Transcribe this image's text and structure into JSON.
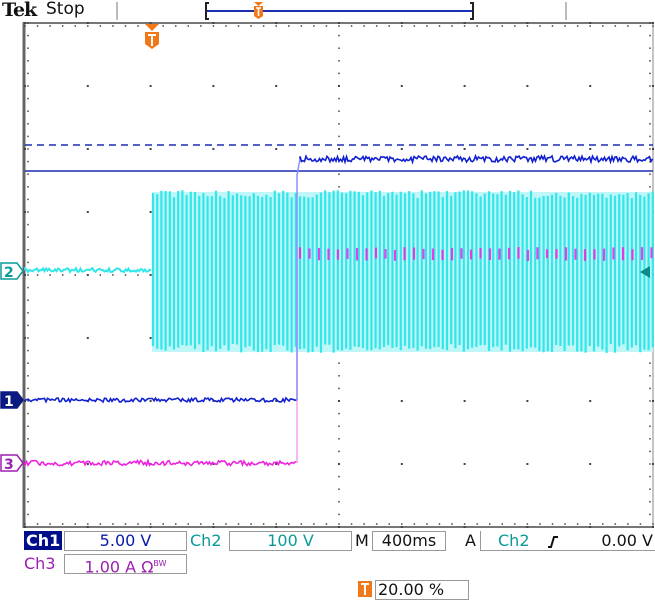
{
  "header": {
    "brand": "Tek",
    "acquisition_state": "Stop"
  },
  "colors": {
    "ch1": "#1020d0",
    "ch2": "#33e6ea",
    "ch3": "#ee22e0",
    "trigger": "#f07818",
    "grid": "#555555"
  },
  "markers": {
    "ch1": "1",
    "ch2": "2",
    "ch3": "3",
    "trigger": "T"
  },
  "readouts": {
    "ch1_label": "Ch1",
    "ch1_scale": "5.00 V",
    "ch2_label": "Ch2",
    "ch2_scale": "100 V",
    "ch3_label": "Ch3",
    "ch3_scale": "1.00 A Ω",
    "ch3_bw": "BW",
    "timebase_label": "M",
    "timebase": "400ms",
    "trigger_mode": "A",
    "trigger_source": "Ch2",
    "trigger_slope": "rising-edge",
    "trigger_level": "0.00 V",
    "trigger_position": "20.00 %"
  }
}
